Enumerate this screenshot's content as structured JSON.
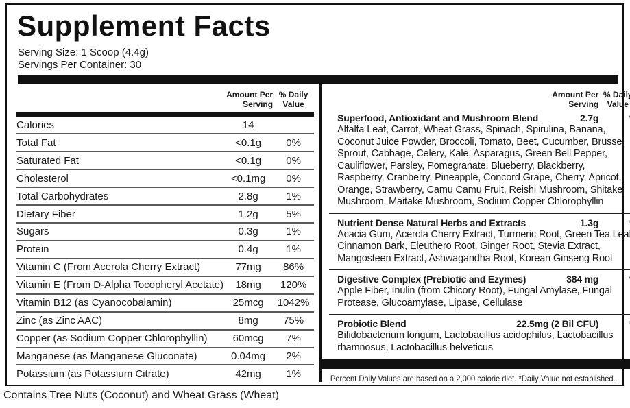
{
  "title": "Supplement Facts",
  "serving": {
    "size": "Serving Size: 1 Scoop (4.4g)",
    "per_container": "Servings Per Container: 30"
  },
  "table_headers": {
    "amount_line1": "Amount Per",
    "amount_line2": "Serving",
    "dv_line1": "% Daily",
    "dv_line2": "Value"
  },
  "nutrients": [
    {
      "name": "Calories",
      "amount": "14",
      "dv": ""
    },
    {
      "name": "Total Fat",
      "amount": "<0.1g",
      "dv": "0%"
    },
    {
      "name": "Saturated Fat",
      "amount": "<0.1g",
      "dv": "0%"
    },
    {
      "name": "Cholesterol",
      "amount": "<0.1mg",
      "dv": "0%"
    },
    {
      "name": "Total Carbohydrates",
      "amount": "2.8g",
      "dv": "1%"
    },
    {
      "name": "Dietary Fiber",
      "amount": "1.2g",
      "dv": "5%"
    },
    {
      "name": "Sugars",
      "amount": "0.3g",
      "dv": "1%"
    },
    {
      "name": "Protein",
      "amount": "0.4g",
      "dv": "1%"
    },
    {
      "name": "Vitamin C (From Acerola Cherry Extract)",
      "amount": "77mg",
      "dv": "86%"
    },
    {
      "name": "Vitamin E (From D-Alpha Tocopheryl Acetate)",
      "amount": "18mg",
      "dv": "120%"
    },
    {
      "name": "Vitamin B12 (as Cyanocobalamin)",
      "amount": "25mcg",
      "dv": "1042%"
    },
    {
      "name": "Zinc (as Zinc AAC)",
      "amount": "8mg",
      "dv": "75%"
    },
    {
      "name": "Copper (as Sodium Copper Chlorophyllin)",
      "amount": "60mcg",
      "dv": "7%"
    },
    {
      "name": "Manganese (as Manganese Gluconate)",
      "amount": "0.04mg",
      "dv": "2%"
    },
    {
      "name": "Potassium (as Potassium Citrate)",
      "amount": "42mg",
      "dv": "1%"
    }
  ],
  "blends": [
    {
      "name": "Superfood, Antioxidant and Mushroom Blend",
      "amount": "2.7g",
      "dv": "*",
      "ingredients": "Alfalfa Leaf, Carrot, Wheat Grass, Spinach, Spirulina, Banana, Coconut Juice Powder, Broccoli, Tomato, Beet, Cucumber, Brussel Sprout, Cabbage, Celery, Kale, Asparagus, Green Bell Pepper, Cauliflower, Parsley, Pomegranate, Blueberry, Blackberry, Raspberry, Cranberry, Pineapple, Concord Grape, Cherry, Apricot, Orange, Strawberry, Camu Camu Fruit, Reishi Mushroom, Shitake Mushroom, Maitake Mushroom, Sodium Copper Chlorophyllin"
    },
    {
      "name": "Nutrient Dense Natural Herbs and Extracts",
      "amount": "1.3g",
      "dv": "*",
      "ingredients": "Acacia Gum, Acerola Cherry Extract, Turmeric Root, Green Tea Leaf, Cinnamon Bark, Eleuthero Root, Ginger Root, Stevia Extract, Mangosteen Extract, Ashwagandha Root, Korean Ginseng Root"
    },
    {
      "name": "Digestive Complex (Prebiotic and Ezymes)",
      "amount": "384 mg",
      "dv": "*",
      "ingredients": "Apple Fiber, Inulin (from Chicory Root), Fungal Amylase, Fungal Protease, Glucoamylase, Lipase, Cellulase"
    },
    {
      "name": "Probiotic Blend",
      "amount": "22.5mg (2 Bil CFU)",
      "dv": "*",
      "ingredients": "Bifidobacterium longum, Lactobacillus acidophilus, Lactobacillus rhamnosus, Lactobacillus helveticus"
    }
  ],
  "footnote": "Percent Daily Values are based on a 2,000 calorie diet. *Daily Value not established.",
  "allergen": "Contains Tree Nuts (Coconut) and Wheat Grass (Wheat)",
  "colors": {
    "ink": "#1a1a1a",
    "bar": "#111111",
    "row_rule": "#5a5a5a",
    "background": "#ffffff"
  }
}
